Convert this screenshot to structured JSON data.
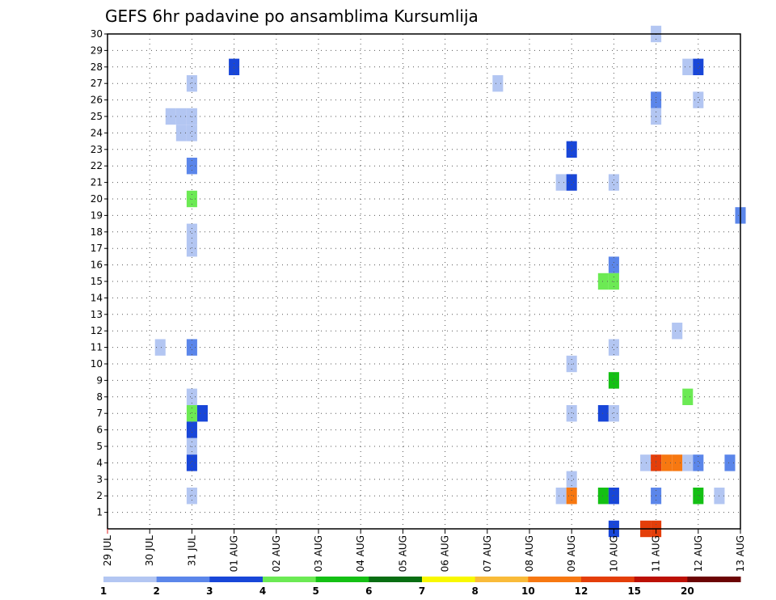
{
  "chart_data": {
    "type": "heatmap",
    "title": "GEFS 6hr padavine po ansamblima Kursumlija",
    "xlabel": "",
    "ylabel": "",
    "x_ticks": [
      "29 JUL",
      "30 JUL",
      "31 JUL",
      "01 AUG",
      "02 AUG",
      "03 AUG",
      "04 AUG",
      "05 AUG",
      "06 AUG",
      "07 AUG",
      "08 AUG",
      "09 AUG",
      "10 AUG",
      "11 AUG",
      "12 AUG",
      "13 AUG"
    ],
    "x_range": [
      "29 JUL 00",
      "13 AUG 00"
    ],
    "y_ticks": [
      "1",
      "2",
      "3",
      "4",
      "5",
      "6",
      "7",
      "8",
      "9",
      "10",
      "11",
      "12",
      "13",
      "14",
      "15",
      "16",
      "17",
      "18",
      "19",
      "20",
      "21",
      "22",
      "23",
      "24",
      "25",
      "26",
      "27",
      "28",
      "29",
      "30"
    ],
    "y_range": [
      0,
      30
    ],
    "grid": true,
    "colorbar": {
      "labels": [
        "1",
        "2",
        "3",
        "4",
        "5",
        "6",
        "7",
        "8",
        "10",
        "12",
        "15",
        "20"
      ],
      "colors": [
        "#b3c6f2",
        "#5b86ea",
        "#1846d8",
        "#6cea54",
        "#14c014",
        "#086e12",
        "#f8f800",
        "#f9bb39",
        "#f77811",
        "#e43e0a",
        "#bc1004",
        "#6c0404"
      ]
    },
    "cells": [
      {
        "member": 30,
        "date": "11 AUG 00",
        "bin": 1
      },
      {
        "member": 28,
        "date": "01 AUG 00",
        "bin": 3
      },
      {
        "member": 28,
        "date": "11 AUG 18",
        "bin": 1
      },
      {
        "member": 28,
        "date": "12 AUG 00",
        "bin": 3
      },
      {
        "member": 27,
        "date": "31 JUL 00",
        "bin": 1
      },
      {
        "member": 27,
        "date": "07 AUG 06",
        "bin": 1
      },
      {
        "member": 26,
        "date": "11 AUG 00",
        "bin": 2
      },
      {
        "member": 26,
        "date": "12 AUG 00",
        "bin": 1
      },
      {
        "member": 25,
        "date": "30 JUL 12",
        "bin": 1
      },
      {
        "member": 25,
        "date": "30 JUL 18",
        "bin": 1
      },
      {
        "member": 25,
        "date": "31 JUL 00",
        "bin": 1
      },
      {
        "member": 25,
        "date": "11 AUG 00",
        "bin": 1
      },
      {
        "member": 24,
        "date": "30 JUL 18",
        "bin": 1
      },
      {
        "member": 24,
        "date": "31 JUL 00",
        "bin": 1
      },
      {
        "member": 23,
        "date": "09 AUG 00",
        "bin": 3
      },
      {
        "member": 22,
        "date": "31 JUL 00",
        "bin": 2
      },
      {
        "member": 21,
        "date": "08 AUG 18",
        "bin": 1
      },
      {
        "member": 21,
        "date": "09 AUG 00",
        "bin": 3
      },
      {
        "member": 21,
        "date": "10 AUG 00",
        "bin": 1
      },
      {
        "member": 20,
        "date": "31 JUL 00",
        "bin": 4
      },
      {
        "member": 19,
        "date": "13 AUG 00",
        "bin": 2
      },
      {
        "member": 18,
        "date": "31 JUL 00",
        "bin": 1
      },
      {
        "member": 17,
        "date": "31 JUL 00",
        "bin": 1
      },
      {
        "member": 16,
        "date": "10 AUG 00",
        "bin": 2
      },
      {
        "member": 15,
        "date": "09 AUG 18",
        "bin": 4
      },
      {
        "member": 15,
        "date": "10 AUG 00",
        "bin": 4
      },
      {
        "member": 12,
        "date": "11 AUG 12",
        "bin": 1
      },
      {
        "member": 11,
        "date": "30 JUL 06",
        "bin": 1
      },
      {
        "member": 11,
        "date": "31 JUL 00",
        "bin": 2
      },
      {
        "member": 11,
        "date": "10 AUG 00",
        "bin": 1
      },
      {
        "member": 10,
        "date": "09 AUG 00",
        "bin": 1
      },
      {
        "member": 9,
        "date": "10 AUG 00",
        "bin": 5
      },
      {
        "member": 8,
        "date": "31 JUL 00",
        "bin": 1
      },
      {
        "member": 8,
        "date": "11 AUG 18",
        "bin": 4
      },
      {
        "member": 7,
        "date": "31 JUL 00",
        "bin": 4
      },
      {
        "member": 7,
        "date": "31 JUL 06",
        "bin": 3
      },
      {
        "member": 7,
        "date": "09 AUG 00",
        "bin": 1
      },
      {
        "member": 7,
        "date": "09 AUG 18",
        "bin": 3
      },
      {
        "member": 7,
        "date": "10 AUG 00",
        "bin": 1
      },
      {
        "member": 6,
        "date": "31 JUL 00",
        "bin": 3
      },
      {
        "member": 5,
        "date": "31 JUL 00",
        "bin": 1
      },
      {
        "member": 4,
        "date": "31 JUL 00",
        "bin": 3
      },
      {
        "member": 4,
        "date": "10 AUG 18",
        "bin": 1
      },
      {
        "member": 4,
        "date": "11 AUG 00",
        "bin": 10
      },
      {
        "member": 4,
        "date": "11 AUG 06",
        "bin": 9
      },
      {
        "member": 4,
        "date": "11 AUG 12",
        "bin": 9
      },
      {
        "member": 4,
        "date": "11 AUG 18",
        "bin": 1
      },
      {
        "member": 4,
        "date": "12 AUG 00",
        "bin": 2
      },
      {
        "member": 4,
        "date": "12 AUG 18",
        "bin": 2
      },
      {
        "member": 3,
        "date": "09 AUG 00",
        "bin": 1
      },
      {
        "member": 2,
        "date": "31 JUL 00",
        "bin": 1
      },
      {
        "member": 2,
        "date": "08 AUG 18",
        "bin": 1
      },
      {
        "member": 2,
        "date": "09 AUG 00",
        "bin": 9
      },
      {
        "member": 2,
        "date": "09 AUG 18",
        "bin": 5
      },
      {
        "member": 2,
        "date": "10 AUG 00",
        "bin": 3
      },
      {
        "member": 2,
        "date": "11 AUG 00",
        "bin": 2
      },
      {
        "member": 2,
        "date": "12 AUG 00",
        "bin": 5
      },
      {
        "member": 2,
        "date": "12 AUG 12",
        "bin": 1
      },
      {
        "member": 0,
        "date": "10 AUG 00",
        "bin": 3
      },
      {
        "member": 0,
        "date": "10 AUG 18",
        "bin": 10
      },
      {
        "member": 0,
        "date": "11 AUG 00",
        "bin": 10
      }
    ]
  }
}
